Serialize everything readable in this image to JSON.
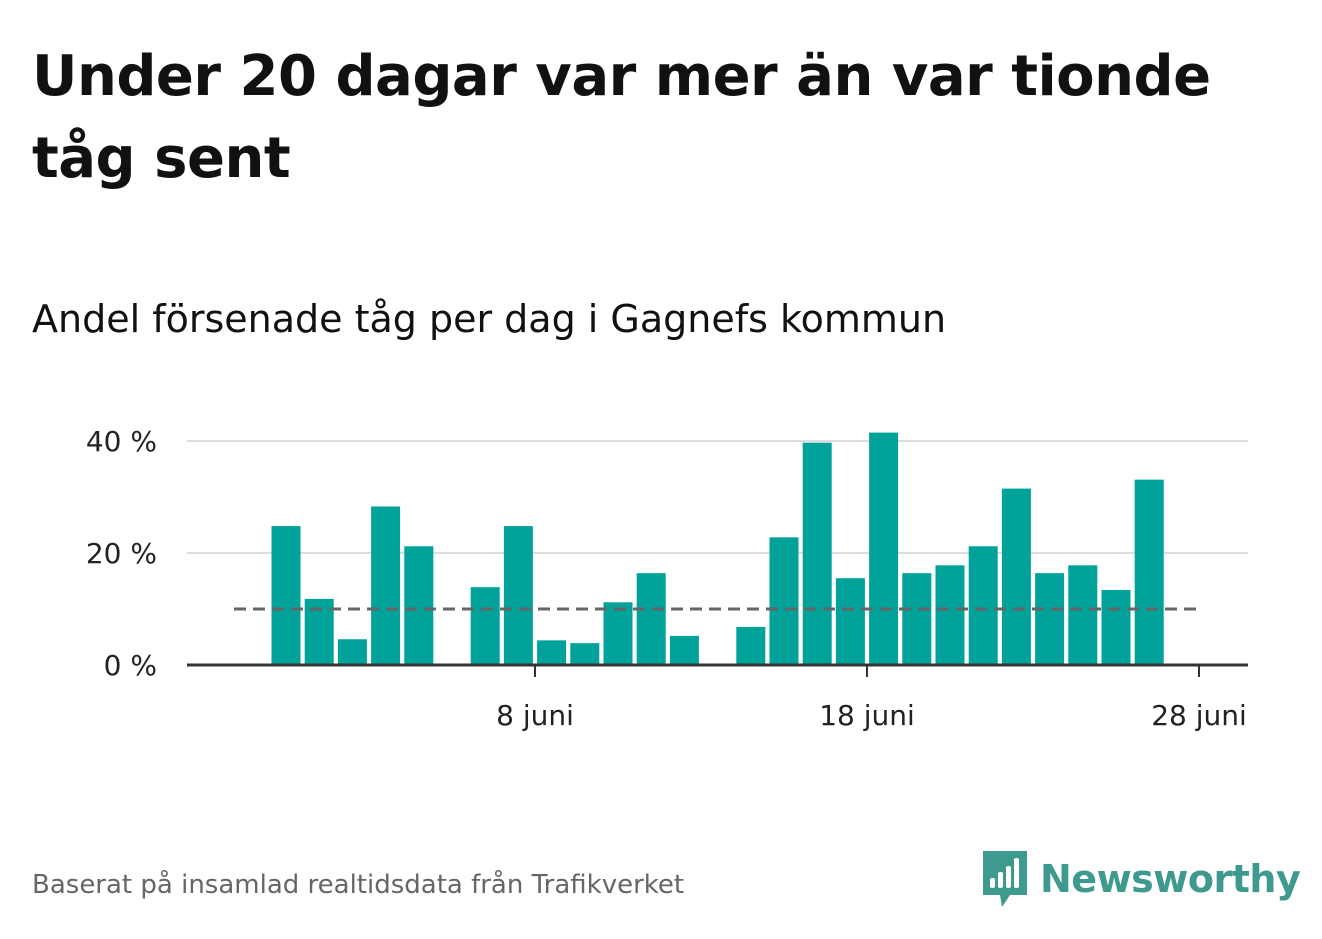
{
  "title": "Under 20 dagar var mer än var tionde tåg sent",
  "subtitle": "Andel försenade tåg per dag i Gagnefs kommun",
  "source": "Baserat på insamlad realtidsdata från Trafikverket",
  "brand": {
    "name": "Newsworthy",
    "icon": "newsworthy-logo-icon",
    "color": "#3e9a8f"
  },
  "colors": {
    "bar": "#00a29a",
    "grid": "#dddddd",
    "axis": "#333333",
    "threshold": "#666666"
  },
  "chart_data": {
    "type": "bar",
    "days": [
      1,
      2,
      3,
      4,
      5,
      6,
      7,
      8,
      9,
      10,
      11,
      12,
      13,
      14,
      15,
      16,
      17,
      18,
      19,
      20,
      21,
      22,
      23,
      24,
      25,
      26,
      27,
      28,
      29,
      30
    ],
    "values": [
      24.8,
      11.8,
      4.6,
      28.3,
      21.2,
      null,
      13.9,
      24.8,
      4.4,
      3.9,
      11.2,
      16.4,
      5.2,
      null,
      6.8,
      22.8,
      39.7,
      15.5,
      41.5,
      16.4,
      17.8,
      21.2,
      31.5,
      16.4,
      17.8,
      13.4,
      33.1,
      null,
      null,
      null
    ],
    "threshold": 10,
    "ylim": [
      0,
      45
    ],
    "yticks": [
      {
        "value": 0,
        "label": "0 %"
      },
      {
        "value": 20,
        "label": "20 %"
      },
      {
        "value": 40,
        "label": "40 %"
      }
    ],
    "xticks": [
      {
        "day": 8,
        "label": "8 juni"
      },
      {
        "day": 18,
        "label": "18 juni"
      },
      {
        "day": 28,
        "label": "28 juni"
      }
    ],
    "grid": true,
    "legend": "none"
  }
}
